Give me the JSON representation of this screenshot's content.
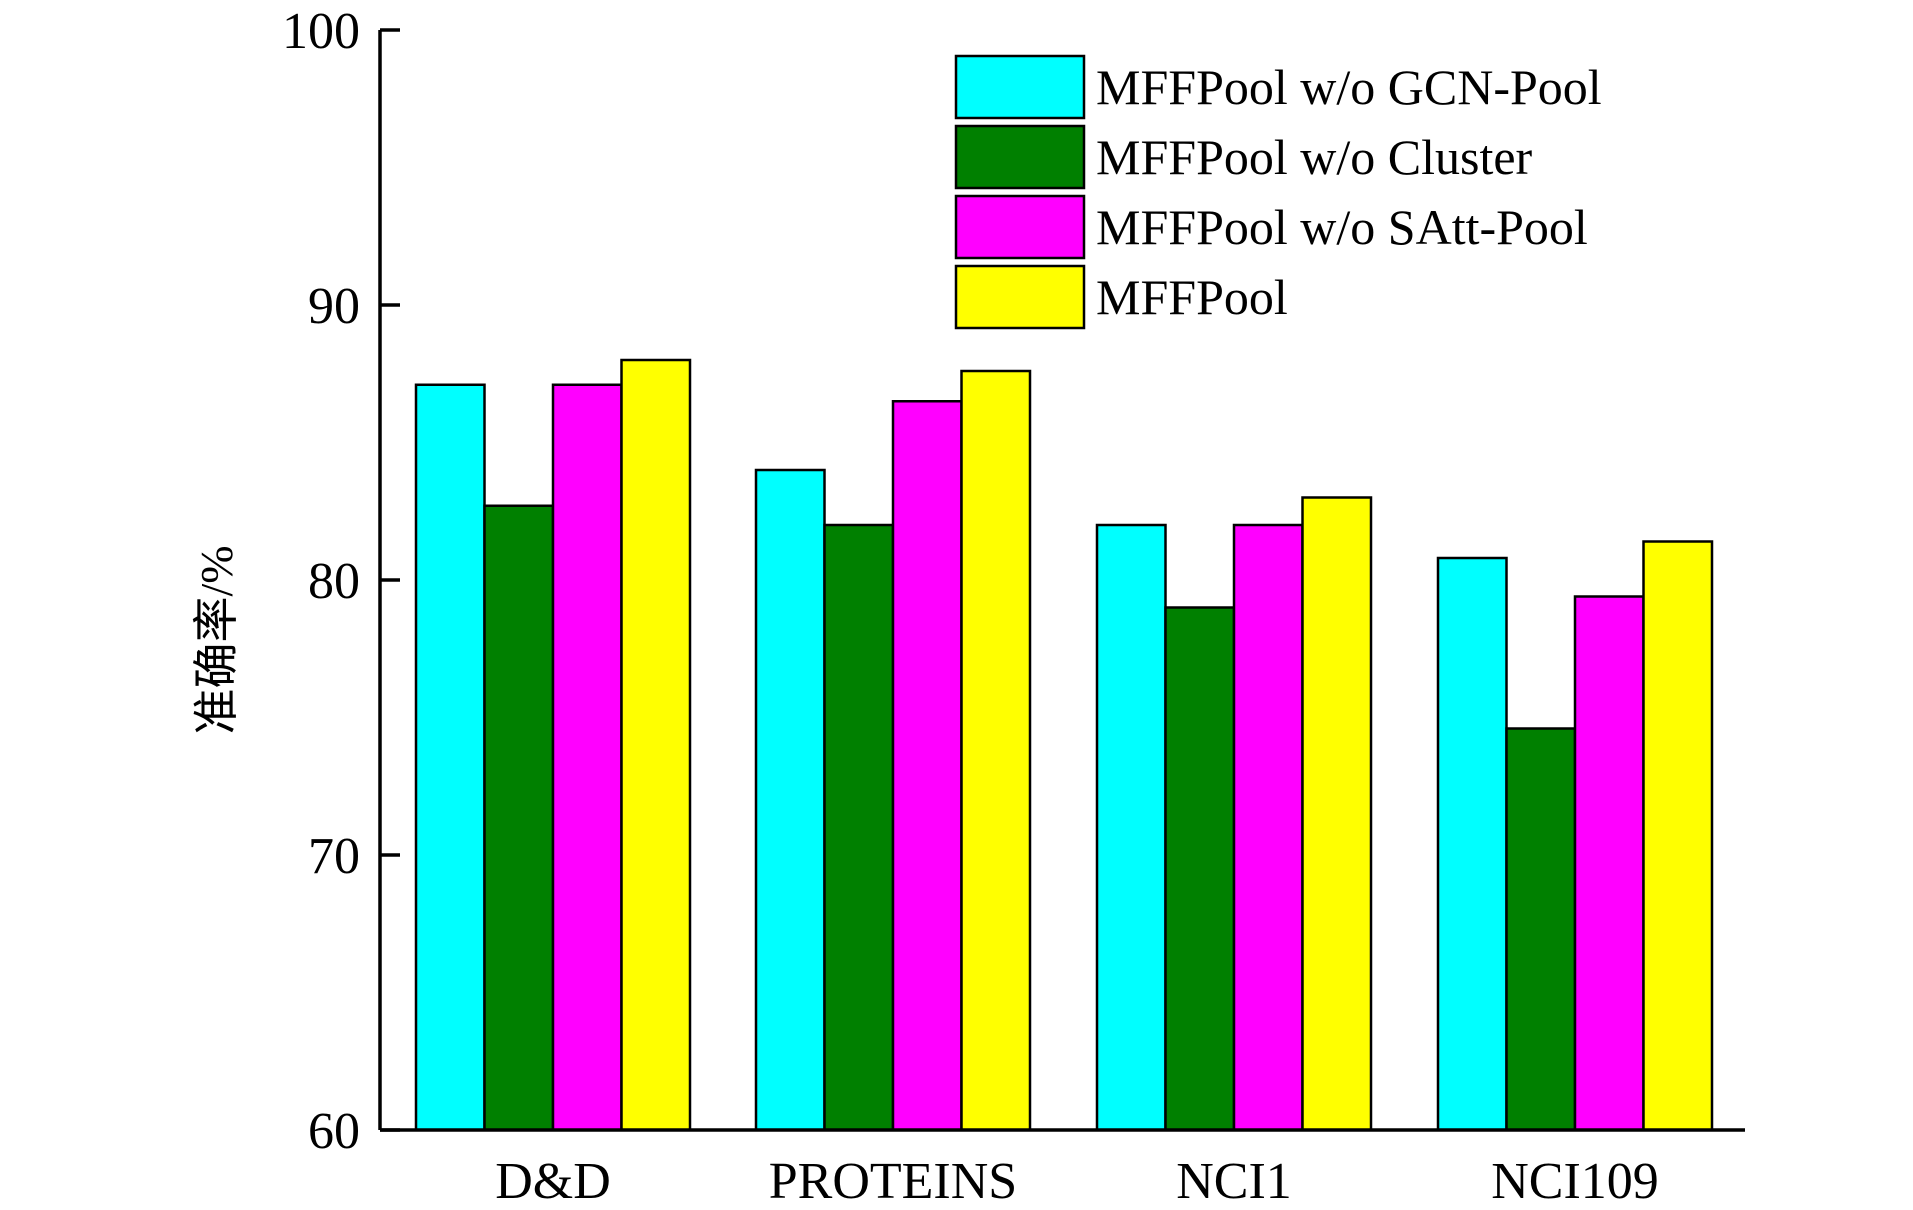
{
  "chart_data": {
    "type": "bar",
    "title": "",
    "xlabel": "",
    "ylabel": "准确率/%",
    "ylim": [
      60,
      100
    ],
    "yticks": [
      60,
      70,
      80,
      90,
      100
    ],
    "categories": [
      "D&D",
      "PROTEINS",
      "NCI1",
      "NCI109"
    ],
    "series": [
      {
        "name": "MFFPool w/o GCN-Pool",
        "color": "#00FFFF",
        "values": [
          87.1,
          84.0,
          82.0,
          80.8
        ]
      },
      {
        "name": "MFFPool w/o Cluster",
        "color": "#008000",
        "values": [
          82.7,
          82.0,
          79.0,
          74.6
        ]
      },
      {
        "name": "MFFPool w/o SAtt-Pool",
        "color": "#FF00FF",
        "values": [
          87.1,
          86.5,
          82.0,
          79.4
        ]
      },
      {
        "name": "MFFPool",
        "color": "#FFFF00",
        "values": [
          88.0,
          87.6,
          83.0,
          81.4
        ]
      }
    ],
    "legend_position": "top-right",
    "grid": false
  }
}
